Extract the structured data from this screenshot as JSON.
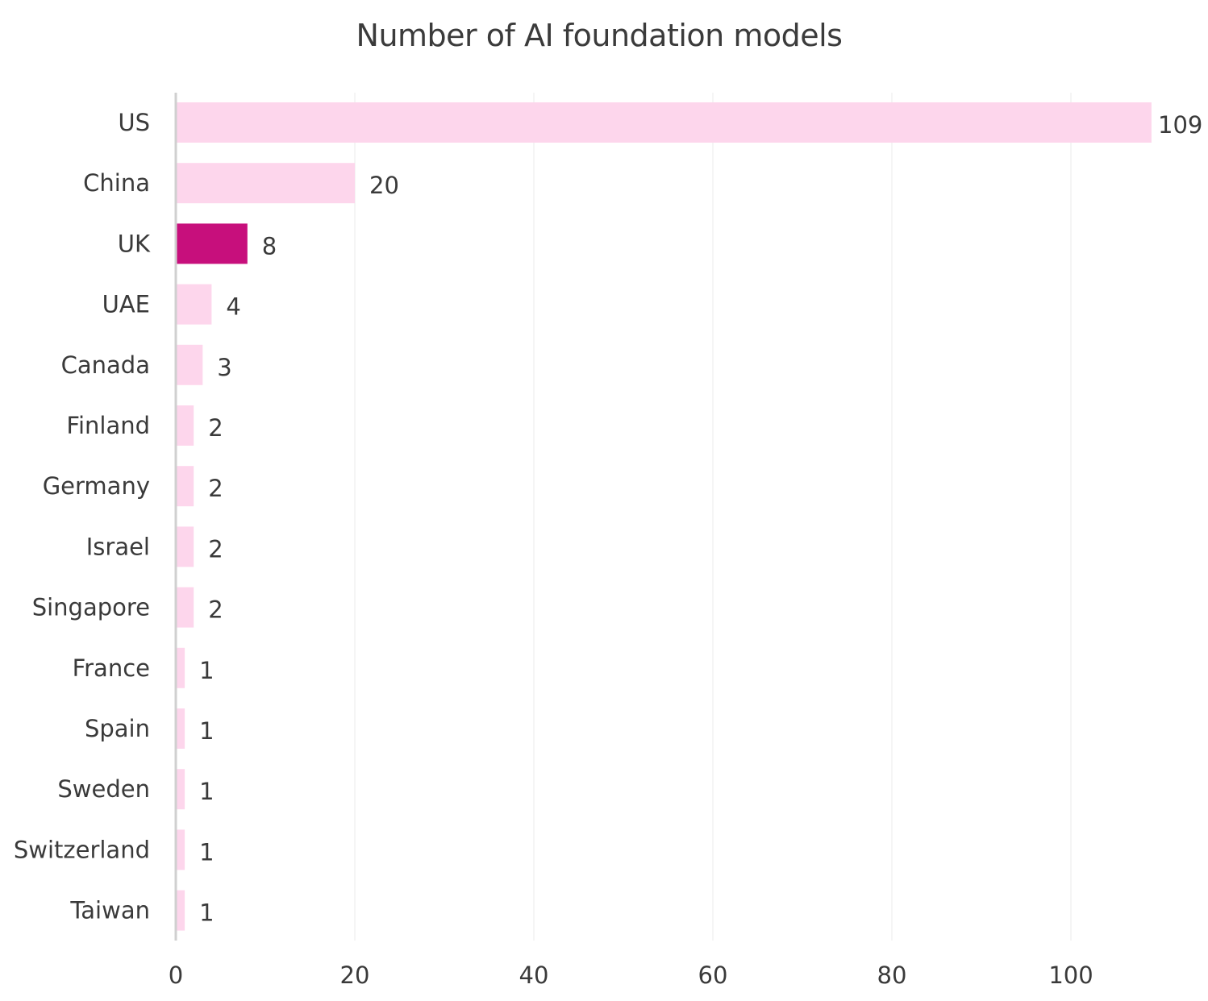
{
  "chart_data": {
    "type": "bar",
    "orientation": "horizontal",
    "title": "Number of AI foundation models",
    "xlabel": "",
    "ylabel": "",
    "categories": [
      "US",
      "China",
      "UK",
      "UAE",
      "Canada",
      "Finland",
      "Germany",
      "Israel",
      "Singapore",
      "France",
      "Spain",
      "Sweden",
      "Switzerland",
      "Taiwan"
    ],
    "values": [
      109,
      20,
      8,
      4,
      3,
      2,
      2,
      2,
      2,
      1,
      1,
      1,
      1,
      1
    ],
    "data_labels": [
      "109",
      "20",
      "8",
      "4",
      "3",
      "2",
      "2",
      "2",
      "2",
      "1",
      "1",
      "1",
      "1",
      "1"
    ],
    "highlight_category": "UK",
    "xlim": [
      0,
      112
    ],
    "x_ticks": [
      0,
      20,
      40,
      60,
      80,
      100
    ],
    "x_tick_labels": [
      "0",
      "20",
      "40",
      "60",
      "80",
      "100"
    ],
    "grid": true,
    "legend": "none",
    "colors": {
      "bar": "#fdd6ec",
      "highlight": "#c70f7c",
      "grid": "#ebebeb",
      "axis": "#d0d0d0",
      "text": "#3a3a3a"
    }
  }
}
